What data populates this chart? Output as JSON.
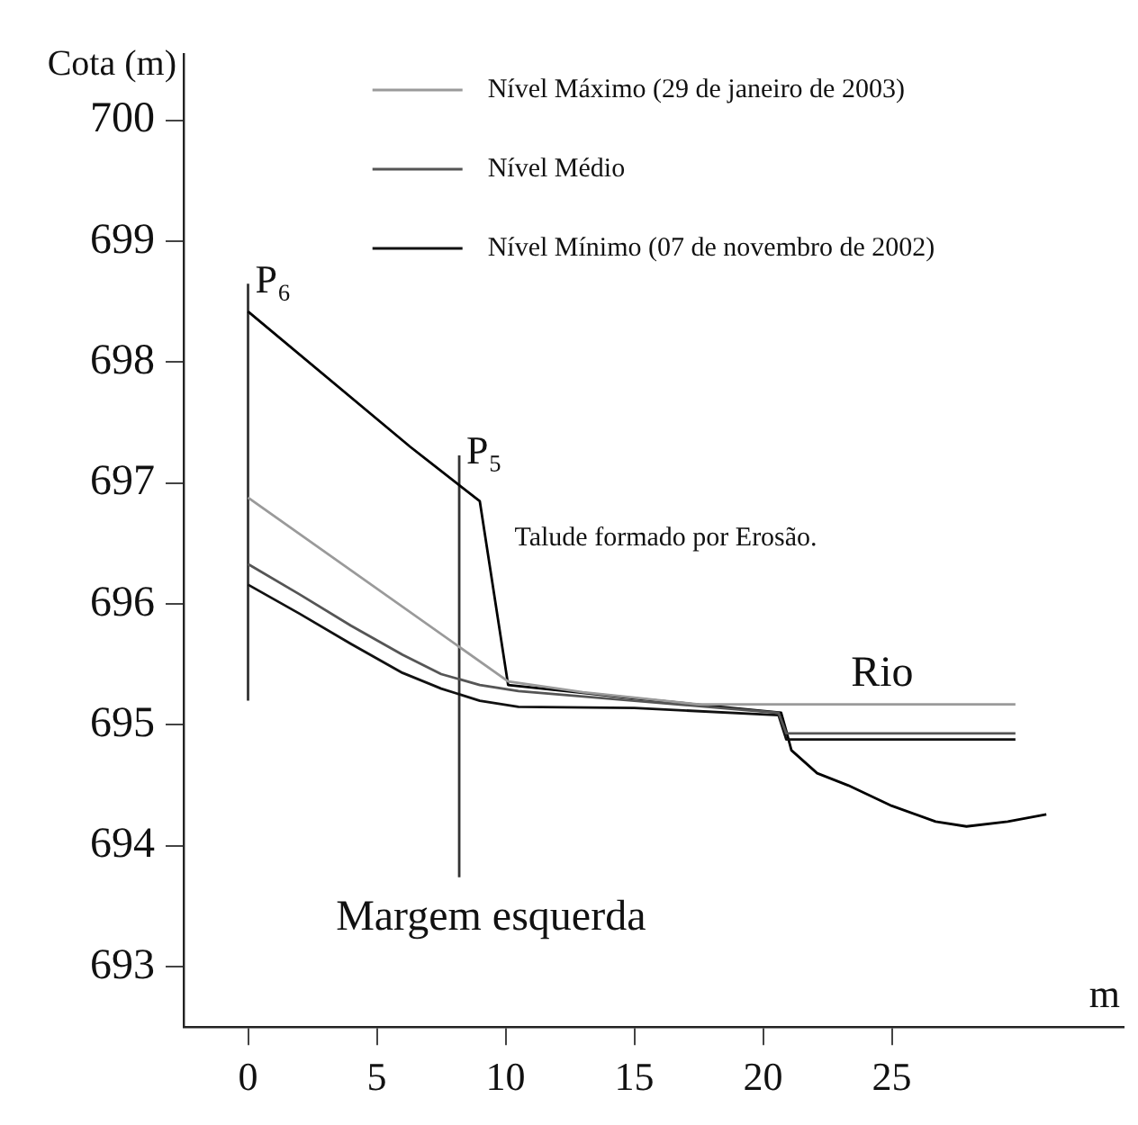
{
  "chart_data": {
    "type": "line",
    "ylabel": "Cota (m)",
    "xlabel": "m",
    "xlim": [
      -2.5,
      34
    ],
    "xticks": [
      0,
      5,
      10,
      15,
      20,
      25
    ],
    "ylim": [
      692.5,
      700.55
    ],
    "yticks": [
      693,
      694,
      695,
      696,
      697,
      698,
      699,
      700
    ],
    "grid": false,
    "legend": "top",
    "marker": "none",
    "line_style": "solid",
    "series": [
      {
        "name": "Nível Máximo (29 de janeiro de 2003)",
        "color": "#9a9a9a",
        "x": [
          0,
          10.1,
          13,
          17.5,
          29.8
        ],
        "values": [
          696.88,
          695.36,
          695.27,
          695.17,
          695.17
        ]
      },
      {
        "name": "Nível Médio",
        "color": "#555555",
        "x": [
          0,
          2,
          4,
          6,
          7.5,
          9,
          10.5,
          15,
          20.6,
          20.9,
          29.8
        ],
        "values": [
          696.33,
          696.08,
          695.82,
          695.58,
          695.42,
          695.33,
          695.28,
          695.2,
          695.1,
          694.93,
          694.93
        ]
      },
      {
        "name": "Nível Mínimo (07 de novembro de 2002)",
        "color": "#111111",
        "x": [
          0,
          2,
          4,
          6,
          7.5,
          9,
          10.5,
          15,
          20.6,
          20.9,
          29.8
        ],
        "values": [
          696.16,
          695.92,
          695.67,
          695.43,
          695.3,
          695.2,
          695.15,
          695.14,
          695.08,
          694.88,
          694.88
        ]
      },
      {
        "color": "#000000",
        "x": [
          0,
          6.3,
          9,
          10.1,
          15,
          20.7,
          20.9,
          21.1,
          22.1,
          23.3,
          25,
          26.7,
          27.9,
          29.5,
          31
        ],
        "values": [
          698.42,
          697.3,
          696.85,
          695.33,
          695.22,
          695.1,
          694.95,
          694.79,
          694.6,
          694.5,
          694.33,
          694.2,
          694.16,
          694.2,
          694.26
        ]
      },
      {
        "color": "#333333",
        "x": [
          0,
          0
        ],
        "values": [
          695.2,
          698.65
        ]
      },
      {
        "color": "#333333",
        "x": [
          8.2,
          8.2
        ],
        "values": [
          693.74,
          697.23
        ]
      }
    ],
    "annotations": [
      {
        "text": "P₆",
        "x": 0,
        "y": 698.66
      },
      {
        "text": "P₅",
        "x": 8.2,
        "y": 697.25
      },
      "Talude formado por Erosão.",
      "Rio",
      "Margem esquerda"
    ]
  }
}
